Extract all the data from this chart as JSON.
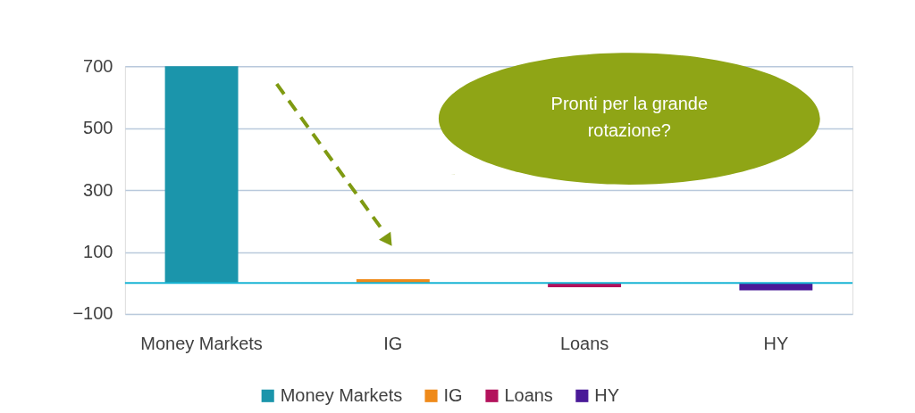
{
  "chart_data": {
    "type": "bar",
    "categories": [
      "Money Markets",
      "IG",
      "Loans",
      "HY"
    ],
    "series": [
      {
        "name": "Money Markets",
        "color": "#1b95ab",
        "values": [
          700,
          null,
          null,
          null
        ]
      },
      {
        "name": "IG",
        "color": "#ef8a1a",
        "values": [
          null,
          12,
          null,
          null
        ]
      },
      {
        "name": "Loans",
        "color": "#b3125c",
        "values": [
          null,
          null,
          -14,
          null
        ]
      },
      {
        "name": "HY",
        "color": "#4a1a98",
        "values": [
          null,
          null,
          null,
          -24
        ]
      }
    ],
    "ylim": [
      -100,
      700
    ],
    "yticks": [
      -100,
      100,
      300,
      500,
      700
    ],
    "grid": "y",
    "legend": "bottom",
    "ref_lines": [
      {
        "axis": "y",
        "value": 0,
        "color": "#19b4d4"
      }
    ],
    "annotations": [
      "Pronti per la grande rotazione?"
    ]
  }
}
